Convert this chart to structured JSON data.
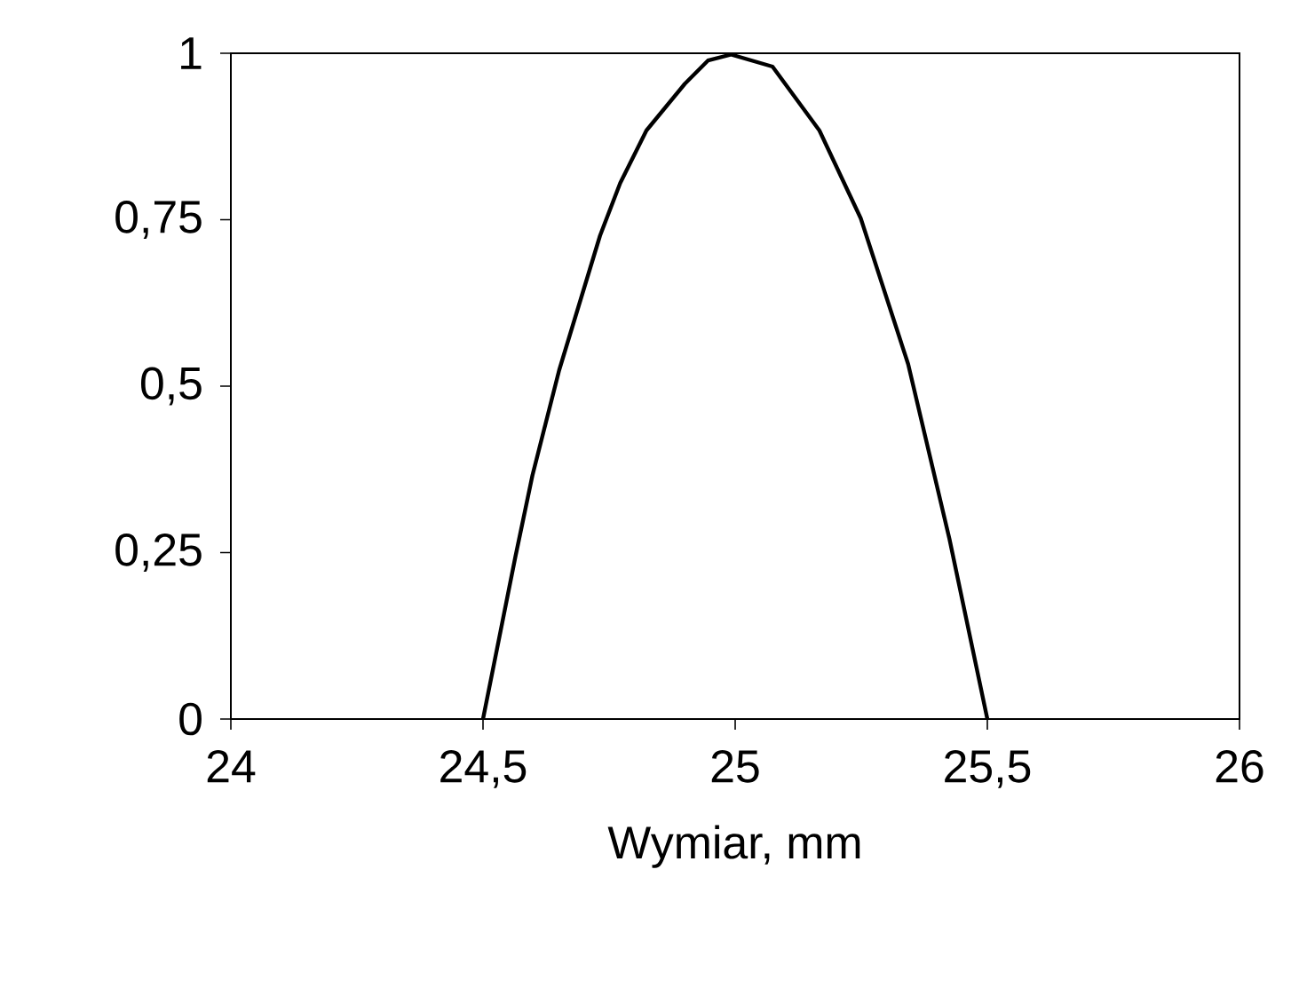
{
  "chart_data": {
    "type": "line",
    "xlabel": "Wymiar, mm",
    "x": [
      24.5,
      24.564,
      24.598,
      24.651,
      24.732,
      24.772,
      24.824,
      24.9,
      24.946,
      24.992,
      25.074,
      25.167,
      25.249,
      25.343,
      25.425,
      25.5
    ],
    "values": [
      0,
      0.243,
      0.366,
      0.524,
      0.726,
      0.805,
      0.884,
      0.954,
      0.989,
      0.998,
      0.98,
      0.884,
      0.752,
      0.533,
      0.27,
      0
    ],
    "color": "#000000",
    "xlim": [
      24,
      26
    ],
    "ylim": [
      0,
      1
    ],
    "xticks": [
      24,
      {
        "value": 24.5,
        "label": "24,5"
      },
      25,
      {
        "value": 25.5,
        "label": "25,5"
      },
      26
    ],
    "yticks": [
      0,
      {
        "value": 0.25,
        "label": "0,25"
      },
      {
        "value": 0.5,
        "label": "0,5"
      },
      {
        "value": 0.75,
        "label": "0,75"
      },
      1
    ],
    "line_style": "solid"
  }
}
